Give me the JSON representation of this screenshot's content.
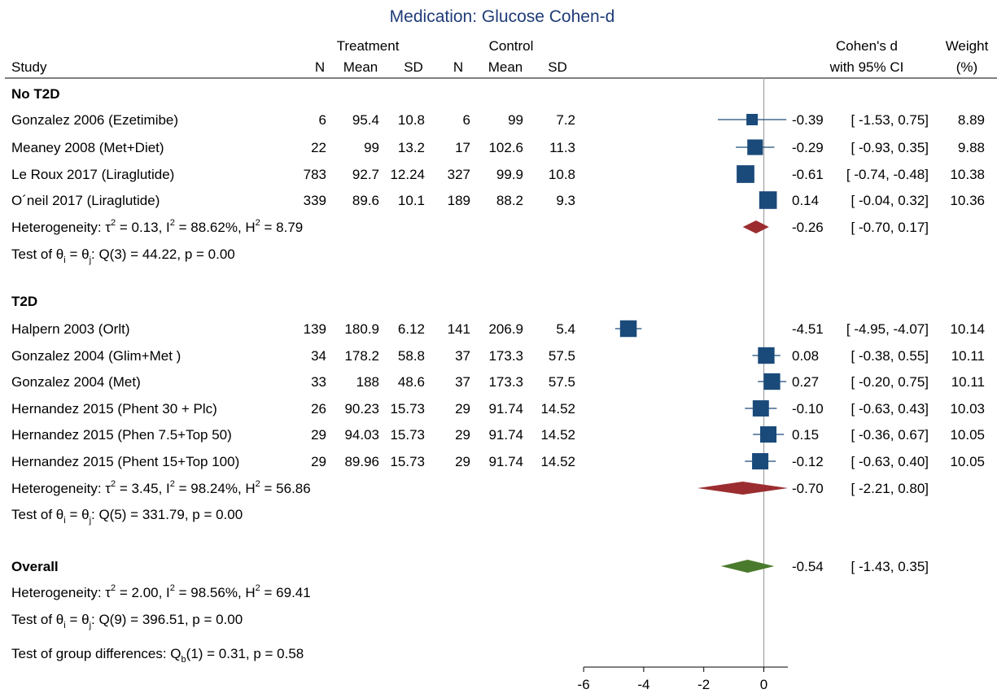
{
  "chart_data": {
    "type": "forest",
    "title": "Medication:  Glucose Cohen-d",
    "header": {
      "group_treatment": "Treatment",
      "group_control": "Control",
      "study": "Study",
      "n": "N",
      "mean": "Mean",
      "sd": "SD",
      "effect_line1": "Cohen's d",
      "effect_line2": "with 95% CI",
      "weight_line1": "Weight",
      "weight_line2": "(%)"
    },
    "subgroups": [
      {
        "name": "No T2D",
        "studies": [
          {
            "study": "Gonzalez 2006 (Ezetimibe)",
            "t_n": "6",
            "t_mean": "95.4",
            "t_sd": "10.8",
            "c_n": "6",
            "c_mean": "99",
            "c_sd": "7.2",
            "d": -0.39,
            "lo": -1.53,
            "hi": 0.75,
            "ci_text": "-0.39 [ -1.53,   0.75]",
            "weight": 8.89,
            "weight_text": "8.89"
          },
          {
            "study": "Meaney 2008 (Met+Diet)",
            "t_n": "22",
            "t_mean": "99",
            "t_sd": "13.2",
            "c_n": "17",
            "c_mean": "102.6",
            "c_sd": "11.3",
            "d": -0.29,
            "lo": -0.93,
            "hi": 0.35,
            "ci_text": "-0.29 [ -0.93,   0.35]",
            "weight": 9.88,
            "weight_text": "9.88"
          },
          {
            "study": "Le Roux 2017 (Liraglutide)",
            "t_n": "783",
            "t_mean": "92.7",
            "t_sd": "12.24",
            "c_n": "327",
            "c_mean": "99.9",
            "c_sd": "10.8",
            "d": -0.61,
            "lo": -0.74,
            "hi": -0.48,
            "ci_text": "-0.61 [ -0.74,  -0.48]",
            "weight": 10.38,
            "weight_text": "10.38"
          },
          {
            "study": "O´neil 2017 (Liraglutide)",
            "t_n": "339",
            "t_mean": "89.6",
            "t_sd": "10.1",
            "c_n": "189",
            "c_mean": "88.2",
            "c_sd": "9.3",
            "d": 0.14,
            "lo": -0.04,
            "hi": 0.32,
            "ci_text": "0.14 [ -0.04,   0.32]",
            "weight": 10.36,
            "weight_text": "10.36"
          }
        ],
        "pooled": {
          "d": -0.26,
          "lo": -0.7,
          "hi": 0.17,
          "ci_text": "-0.26 [ -0.70,   0.17]"
        },
        "heterogeneity": {
          "prefix": "Heterogeneity: τ",
          "sup": "2",
          "text": " = 0.13, I",
          "i2_sup": "2",
          "text2": " = 88.62%, H",
          "h2_sup": "2",
          "text3": " = 8.79"
        },
        "test": {
          "prefix": "Test of θ",
          "sub_i": "i",
          "eq": " = θ",
          "sub_j": "j",
          "rest": ": Q(3) = 44.22, p = 0.00"
        }
      },
      {
        "name": "T2D",
        "studies": [
          {
            "study": "Halpern 2003 (Orlt)",
            "t_n": "139",
            "t_mean": "180.9",
            "t_sd": "6.12",
            "c_n": "141",
            "c_mean": "206.9",
            "c_sd": "5.4",
            "d": -4.51,
            "lo": -4.95,
            "hi": -4.07,
            "ci_text": "-4.51 [ -4.95,  -4.07]",
            "weight": 10.14,
            "weight_text": "10.14"
          },
          {
            "study": "Gonzalez 2004 (Glim+Met )",
            "t_n": "34",
            "t_mean": "178.2",
            "t_sd": "58.8",
            "c_n": "37",
            "c_mean": "173.3",
            "c_sd": "57.5",
            "d": 0.08,
            "lo": -0.38,
            "hi": 0.55,
            "ci_text": "0.08 [ -0.38,   0.55]",
            "weight": 10.11,
            "weight_text": "10.11"
          },
          {
            "study": "Gonzalez 2004 (Met)",
            "t_n": "33",
            "t_mean": "188",
            "t_sd": "48.6",
            "c_n": "37",
            "c_mean": "173.3",
            "c_sd": "57.5",
            "d": 0.27,
            "lo": -0.2,
            "hi": 0.75,
            "ci_text": "0.27 [ -0.20,   0.75]",
            "weight": 10.11,
            "weight_text": "10.11"
          },
          {
            "study": "Hernandez  2015 (Phent 30 + Plc)",
            "t_n": "26",
            "t_mean": "90.23",
            "t_sd": "15.73",
            "c_n": "29",
            "c_mean": "91.74",
            "c_sd": "14.52",
            "d": -0.1,
            "lo": -0.63,
            "hi": 0.43,
            "ci_text": "-0.10 [ -0.63,   0.43]",
            "weight": 10.03,
            "weight_text": "10.03"
          },
          {
            "study": "Hernandez  2015 (Phen 7.5+Top 50)",
            "t_n": "29",
            "t_mean": "94.03",
            "t_sd": "15.73",
            "c_n": "29",
            "c_mean": "91.74",
            "c_sd": "14.52",
            "d": 0.15,
            "lo": -0.36,
            "hi": 0.67,
            "ci_text": "0.15 [ -0.36,   0.67]",
            "weight": 10.05,
            "weight_text": "10.05"
          },
          {
            "study": "Hernandez  2015 (Phent 15+Top 100)",
            "t_n": "29",
            "t_mean": "89.96",
            "t_sd": "15.73",
            "c_n": "29",
            "c_mean": "91.74",
            "c_sd": "14.52",
            "d": -0.12,
            "lo": -0.63,
            "hi": 0.4,
            "ci_text": "-0.12 [ -0.63,   0.40]",
            "weight": 10.05,
            "weight_text": "10.05"
          }
        ],
        "pooled": {
          "d": -0.7,
          "lo": -2.21,
          "hi": 0.8,
          "ci_text": "-0.70 [ -2.21,   0.80]"
        },
        "heterogeneity": {
          "prefix": "Heterogeneity: τ",
          "sup": "2",
          "text": " = 3.45, I",
          "i2_sup": "2",
          "text2": " = 98.24%, H",
          "h2_sup": "2",
          "text3": " = 56.86"
        },
        "test": {
          "prefix": "Test of θ",
          "sub_i": "i",
          "eq": " = θ",
          "sub_j": "j",
          "rest": ": Q(5) = 331.79, p = 0.00"
        }
      }
    ],
    "overall": {
      "label": "Overall",
      "d": -0.54,
      "lo": -1.43,
      "hi": 0.35,
      "ci_text": "-0.54 [ -1.43,   0.35]",
      "heterogeneity": {
        "prefix": "Heterogeneity: τ",
        "sup": "2",
        "text": " = 2.00, I",
        "i2_sup": "2",
        "text2": " = 98.56%, H",
        "h2_sup": "2",
        "text3": " = 69.41"
      },
      "test": {
        "prefix": "Test of θ",
        "sub_i": "i",
        "eq": " = θ",
        "sub_j": "j",
        "rest": ": Q(9) = 396.51, p = 0.00"
      }
    },
    "group_test": {
      "prefix": "Test of group differences: Q",
      "sub": "b",
      "rest": "(1) = 0.31, p = 0.58"
    },
    "x_axis": {
      "ticks": [
        -6,
        -4,
        -2,
        0
      ],
      "tick_labels": [
        "-6",
        "-4",
        "-2",
        "0"
      ],
      "range": [
        -6,
        0.8
      ]
    },
    "colors": {
      "title": "#1f3c78",
      "marker": "#1a4a7a",
      "subgroup_diamond": "#9b2d30",
      "overall_diamond": "#4a7a2c",
      "ref_line": "#a0a0a0",
      "text": "#000000"
    }
  }
}
